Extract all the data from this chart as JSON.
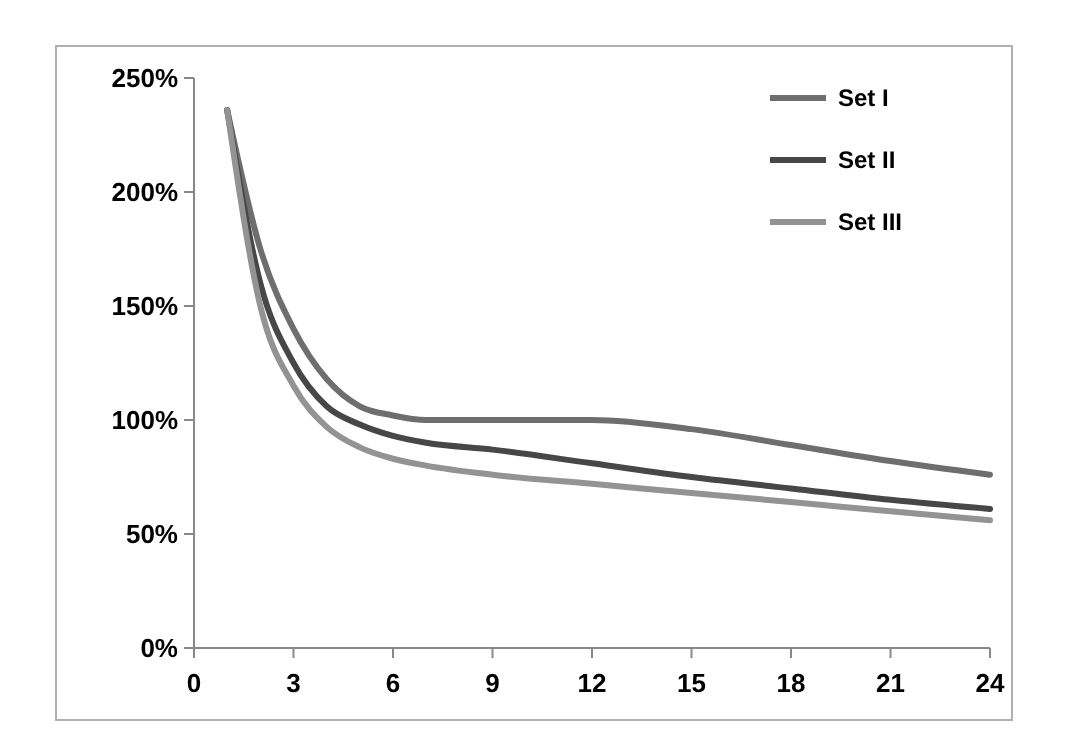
{
  "chart_data": {
    "type": "line",
    "x": [
      1,
      2,
      3,
      4,
      5,
      6,
      7,
      9,
      12,
      15,
      18,
      21,
      24
    ],
    "series": [
      {
        "name": "Set I",
        "color": "#6e6e6e",
        "values": [
          236,
          175,
          140,
          118,
          106,
          102,
          100,
          100,
          100,
          96,
          89,
          82,
          76
        ]
      },
      {
        "name": "Set II",
        "color": "#474747",
        "values": [
          236,
          160,
          125,
          106,
          98,
          93,
          90,
          87,
          81,
          75,
          70,
          65,
          61
        ]
      },
      {
        "name": "Set III",
        "color": "#939393",
        "values": [
          236,
          150,
          115,
          97,
          88,
          83,
          80,
          76,
          72,
          68,
          64,
          60,
          56
        ]
      }
    ],
    "xlim": [
      0,
      24
    ],
    "xticks": [
      0,
      3,
      6,
      9,
      12,
      15,
      18,
      21,
      24
    ],
    "ylim": [
      0,
      250
    ],
    "yticks": [
      {
        "value": 0,
        "label": "0%"
      },
      {
        "value": 50,
        "label": "50%"
      },
      {
        "value": 100,
        "label": "100%"
      },
      {
        "value": 150,
        "label": "150%"
      },
      {
        "value": 200,
        "label": "200%"
      },
      {
        "value": 250,
        "label": "250%"
      }
    ],
    "grid": false,
    "legend": "top right",
    "marker": "none",
    "line_style": "solid"
  }
}
